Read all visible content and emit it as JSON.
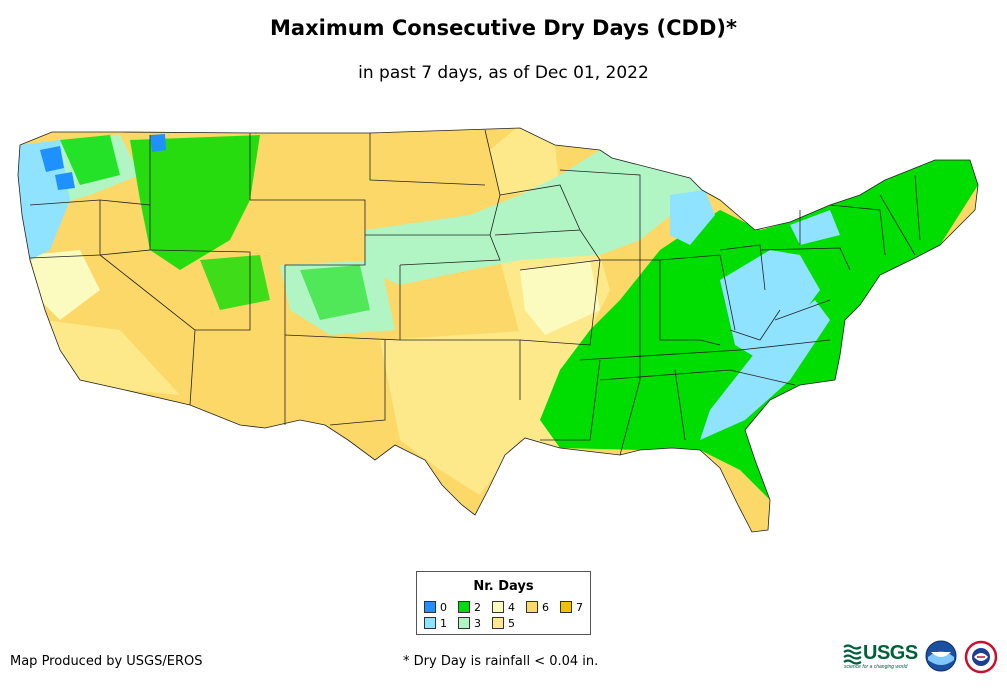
{
  "title": "Maximum Consecutive Dry Days (CDD)*",
  "subtitle": "in past 7 days, as of Dec 01, 2022",
  "legend": {
    "title": "Nr. Days",
    "items": [
      {
        "label": "0",
        "color": "#1e90ff"
      },
      {
        "label": "1",
        "color": "#8fe3ff"
      },
      {
        "label": "2",
        "color": "#00dd00"
      },
      {
        "label": "3",
        "color": "#b2f5c5"
      },
      {
        "label": "4",
        "color": "#fbfbc0"
      },
      {
        "label": "5",
        "color": "#fde98a"
      },
      {
        "label": "6",
        "color": "#fbd868"
      },
      {
        "label": "7",
        "color": "#f5c000"
      }
    ]
  },
  "footer": {
    "credit": "Map Produced by USGS/EROS",
    "note": "* Dry Day is rainfall < 0.04 in."
  },
  "logos": {
    "usgs": "USGS",
    "usgs_tagline": "science for a changing world",
    "noaa": "noaa-logo",
    "nws": "nws-logo"
  }
}
